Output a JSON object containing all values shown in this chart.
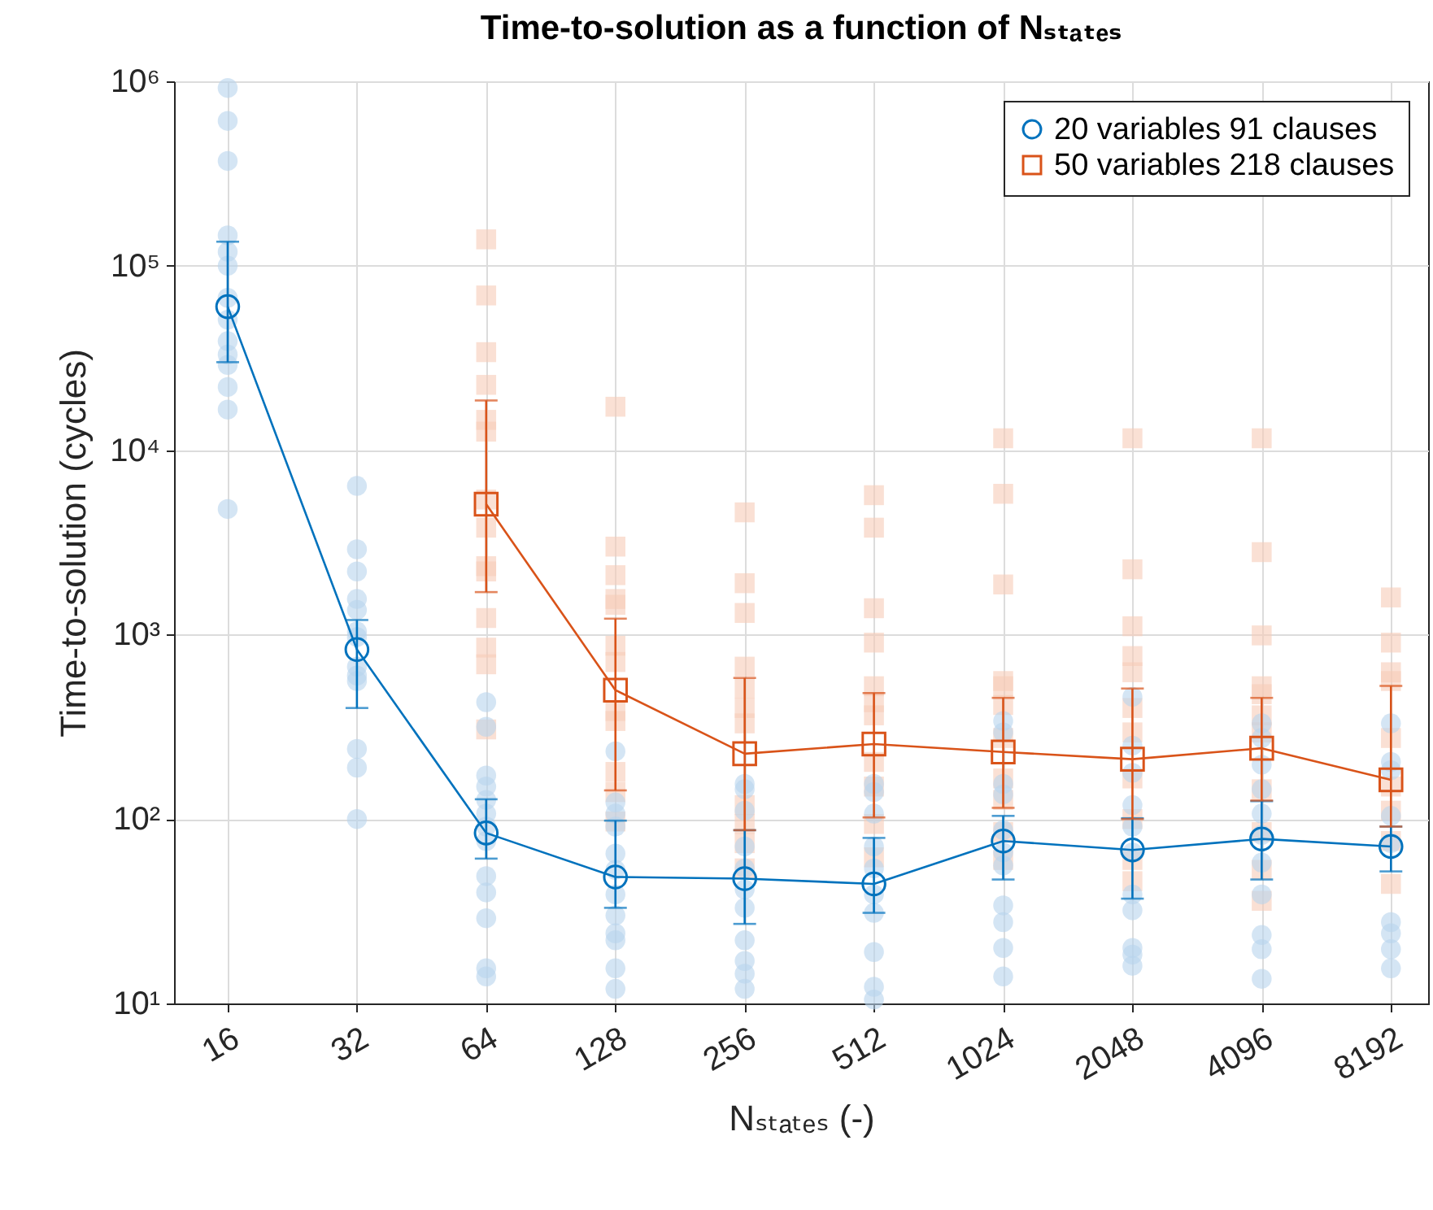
{
  "chart_data": {
    "type": "line",
    "title": "Time-to-solution as a function of Nₛₜₐₜₑₛ",
    "xlabel": "Nₛₜₐₜₑₛ (-)",
    "ylabel": "Time-to-solution (cycles)",
    "log": "xy",
    "grid": true,
    "legend": "top right",
    "line_style": "solid",
    "xlim": [
      12,
      10000
    ],
    "xticks": [
      16,
      32,
      64,
      128,
      256,
      512,
      1024,
      2048,
      4096,
      8192
    ],
    "ylim": [
      10,
      1000000
    ],
    "yticks": [
      {
        "value": 10,
        "label": "10¹"
      },
      {
        "value": 100,
        "label": "10²"
      },
      {
        "value": 1000,
        "label": "10³"
      },
      {
        "value": 10000,
        "label": "10⁴"
      },
      {
        "value": 100000,
        "label": "10⁵"
      },
      {
        "value": 1000000,
        "label": "10⁶"
      }
    ],
    "series": [
      {
        "type": "scatter",
        "marker": "square",
        "color": "#f6cbb8",
        "x": [
          64,
          64,
          64,
          64,
          64,
          64,
          64,
          64,
          64,
          64,
          64,
          64,
          64,
          64,
          128,
          128,
          128,
          128,
          128,
          128,
          128,
          128,
          128,
          128,
          128,
          128,
          256,
          256,
          256,
          256,
          256,
          256,
          256,
          256,
          256,
          256,
          256,
          512,
          512,
          512,
          512,
          512,
          512,
          512,
          512,
          512,
          512,
          512,
          1024,
          1024,
          1024,
          1024,
          1024,
          1024,
          1024,
          1024,
          1024,
          1024,
          1024,
          2048,
          2048,
          2048,
          2048,
          2048,
          2048,
          2048,
          2048,
          2048,
          2048,
          2048,
          4096,
          4096,
          4096,
          4096,
          4096,
          4096,
          4096,
          4096,
          4096,
          4096,
          4096,
          8192,
          8192,
          8192,
          8192,
          8192,
          8192,
          8192,
          8192,
          8192
        ],
        "values": [
          139000,
          69000,
          34000,
          22600,
          14600,
          12600,
          5400,
          3800,
          2350,
          2200,
          1230,
          850,
          690,
          306,
          17200,
          3000,
          2100,
          1560,
          1450,
          870,
          710,
          385,
          340,
          180,
          140,
          97,
          4600,
          1900,
          1310,
          670,
          510,
          400,
          330,
          119,
          94,
          74,
          54,
          5700,
          3800,
          1390,
          905,
          525,
          430,
          365,
          204,
          150,
          94,
          62,
          11600,
          5800,
          1870,
          560,
          525,
          415,
          275,
          166,
          127,
          85,
          60,
          11600,
          2260,
          1110,
          765,
          625,
          400,
          295,
          166,
          100,
          60,
          46,
          11600,
          2800,
          990,
          525,
          475,
          365,
          295,
          145,
          85,
          53,
          36,
          1590,
          905,
          625,
          560,
          275,
          150,
          111,
          76,
          44.5
        ]
      },
      {
        "type": "scatter",
        "marker": "circle",
        "color": "#b7d3ec",
        "x": [
          16,
          16,
          16,
          16,
          16,
          16,
          16,
          16,
          16,
          16,
          16,
          16,
          16,
          16,
          32,
          32,
          32,
          32,
          32,
          32,
          32,
          32,
          32,
          32,
          32,
          32,
          32,
          64,
          64,
          64,
          64,
          64,
          64,
          64,
          64,
          64,
          64,
          64,
          64,
          64,
          128,
          128,
          128,
          128,
          128,
          128,
          128,
          128,
          128,
          128,
          128,
          128,
          256,
          256,
          256,
          256,
          256,
          256,
          256,
          256,
          256,
          256,
          256,
          512,
          512,
          512,
          512,
          512,
          512,
          512,
          512,
          512,
          512,
          1024,
          1024,
          1024,
          1024,
          1024,
          1024,
          1024,
          1024,
          1024,
          1024,
          1024,
          2048,
          2048,
          2048,
          2048,
          2048,
          2048,
          2048,
          2048,
          2048,
          2048,
          2048,
          4096,
          4096,
          4096,
          4096,
          4096,
          4096,
          4096,
          4096,
          4096,
          4096,
          4096,
          8192,
          8192,
          8192,
          8192,
          8192,
          8192,
          8192,
          8192,
          8192
        ],
        "values": [
          920000,
          610000,
          370000,
          146000,
          119000,
          100000,
          67000,
          51000,
          39000,
          33000,
          29000,
          22000,
          16600,
          4800,
          6400,
          2900,
          2200,
          1560,
          1360,
          1040,
          970,
          670,
          600,
          560,
          240,
          190,
          100,
          430,
          316,
          172,
          150,
          127,
          107,
          91,
          76,
          49,
          40,
          29,
          15.5,
          14,
          233,
          123,
          107,
          91,
          65,
          53,
          39,
          30,
          24,
          22,
          15.5,
          12,
          155,
          145,
          111,
          71,
          54,
          41.5,
          33,
          22,
          17,
          14.5,
          12,
          155,
          140,
          107,
          71,
          54,
          39,
          31,
          19,
          12.3,
          10.5,
          340,
          295,
          155,
          136,
          87,
          66,
          56,
          34,
          27.6,
          20,
          14,
          460,
          250,
          178,
          119,
          91,
          66,
          39,
          32,
          20,
          18.4,
          16,
          330,
          275,
          197,
          145,
          107,
          82,
          58,
          39,
          23.5,
          19.7,
          13.6,
          330,
          204,
          184,
          104,
          74,
          27.6,
          24,
          19.7,
          15.5
        ]
      },
      {
        "name": "20 variables 91 clauses",
        "marker": "circle",
        "color": "#0072bd",
        "x": [
          16,
          32,
          64,
          128,
          256,
          512,
          1024,
          2048,
          4096,
          8192
        ],
        "values": [
          60000,
          830,
          84,
          48.5,
          47.5,
          44.5,
          76,
          68,
          78,
          71
        ],
        "errors": [
          [
            30000,
            135000
          ],
          [
            400,
            1200
          ],
          [
            61,
            128
          ],
          [
            33,
            98
          ],
          [
            27,
            87
          ],
          [
            31,
            79
          ],
          [
            47,
            104
          ],
          [
            37,
            101
          ],
          [
            47,
            125
          ],
          [
            52,
            91
          ]
        ]
      },
      {
        "name": "50 variables 218 clauses",
        "marker": "square",
        "color": "#d95319",
        "x": [
          64,
          128,
          256,
          512,
          1024,
          2048,
          4096,
          8192
        ],
        "values": [
          5100,
          500,
          226,
          255,
          231,
          211,
          242,
          163
        ],
        "errors": [
          [
            1700,
            18600
          ],
          [
            143,
            1220
          ],
          [
            87,
            582
          ],
          [
            102,
            482
          ],
          [
            115,
            454
          ],
          [
            100,
            510
          ],
          [
            126,
            454
          ],
          [
            91,
            527
          ]
        ]
      }
    ]
  }
}
